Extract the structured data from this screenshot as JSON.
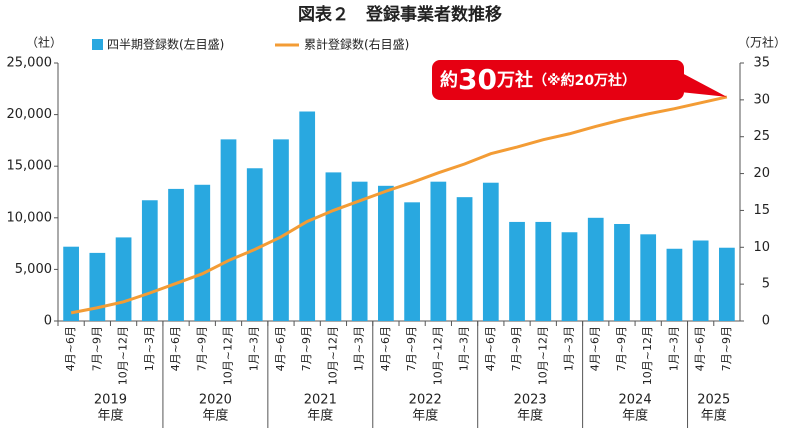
{
  "chart_data": {
    "type": "bar_line",
    "title": "図表２　登録事業者数推移",
    "y_label": "（社）",
    "y2_label": "（万社）",
    "categories": [
      "4月~6月",
      "7月~9月",
      "10月~12月",
      "1月~3月",
      "4月~6月",
      "7月~9月",
      "10月~12月",
      "1月~3月",
      "4月~6月",
      "7月~9月",
      "10月~12月",
      "1月~3月",
      "4月~6月",
      "7月~9月",
      "10月~12月",
      "1月~3月",
      "4月~6月",
      "7月~9月",
      "10月~12月",
      "1月~3月",
      "4月~6月",
      "7月~9月",
      "10月~12月",
      "1月~3月",
      "4月~6月",
      "7月~9月"
    ],
    "year_labels": [
      "2019",
      null,
      null,
      null,
      "2020",
      null,
      null,
      null,
      "2021",
      null,
      null,
      null,
      "2022",
      null,
      null,
      null,
      "2023",
      null,
      null,
      null,
      "2024",
      null,
      null,
      null,
      "2025",
      null
    ],
    "year_suffix": "年度",
    "series": [
      {
        "name": "四半期登録数(左目盛)",
        "type": "bar",
        "color": "#29a8e0",
        "values": [
          7200,
          6600,
          8100,
          11700,
          12800,
          13200,
          17600,
          14800,
          17600,
          20300,
          14400,
          13500,
          13100,
          11500,
          13500,
          12000,
          13400,
          9600,
          9600,
          8600,
          10000,
          9400,
          8400,
          7000,
          7800,
          7100
        ]
      },
      {
        "name": "累計登録数(右目盛)",
        "type": "line",
        "axis": "y2",
        "color": "#f39c35",
        "values": [
          1.1,
          1.8,
          2.6,
          3.8,
          5.1,
          6.4,
          8.2,
          9.7,
          11.4,
          13.5,
          15.0,
          16.3,
          17.6,
          18.8,
          20.1,
          21.3,
          22.7,
          23.6,
          24.6,
          25.4,
          26.4,
          27.3,
          28.1,
          28.8,
          29.6,
          30.4
        ]
      }
    ],
    "ylim": [
      0,
      25000
    ],
    "yticks": [
      0,
      {
        "value": 5000,
        "label": "5,000"
      },
      {
        "value": 10000,
        "label": "10,000"
      },
      {
        "value": 15000,
        "label": "15,000"
      },
      {
        "value": 20000,
        "label": "20,000"
      },
      {
        "value": 25000,
        "label": "25,000"
      }
    ],
    "y2lim": [
      0,
      35
    ],
    "y2ticks": [
      0,
      5,
      10,
      15,
      20,
      25,
      30,
      35
    ],
    "annotation": [
      "約",
      "30",
      "万社",
      "（※約20万社）"
    ],
    "annotation_color": "#e60012"
  }
}
